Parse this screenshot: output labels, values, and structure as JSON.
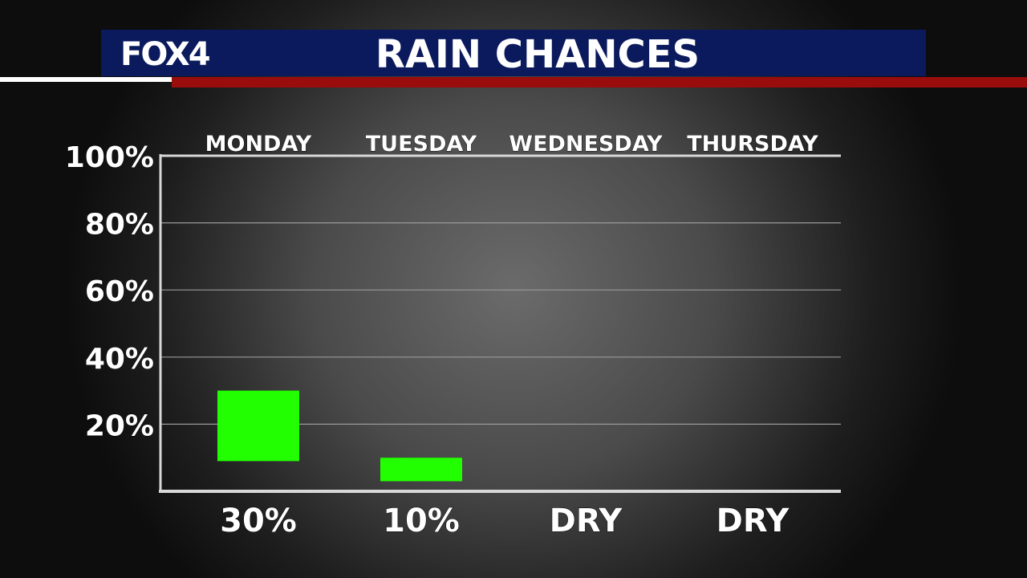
{
  "header": {
    "logo_text": "FOX4",
    "title": "RAIN CHANCES"
  },
  "colors": {
    "header_blue": "#0a1a5c",
    "stripe_red": "#9a0d0d",
    "bar_green": "#22ff00"
  },
  "chart_data": {
    "type": "bar",
    "title": "RAIN CHANCES",
    "categories": [
      "MONDAY",
      "TUESDAY",
      "WEDNESDAY",
      "THURSDAY"
    ],
    "series": [
      {
        "values": [
          30,
          10,
          0,
          0
        ]
      }
    ],
    "value_labels": [
      "30%",
      "10%",
      "DRY",
      "DRY"
    ],
    "y_ticks": [
      "20%",
      "40%",
      "60%",
      "80%",
      "100%"
    ],
    "y_tick_values": [
      20,
      40,
      60,
      80,
      100
    ],
    "ylim": [
      0,
      100
    ],
    "grid": true,
    "legend": "none"
  }
}
